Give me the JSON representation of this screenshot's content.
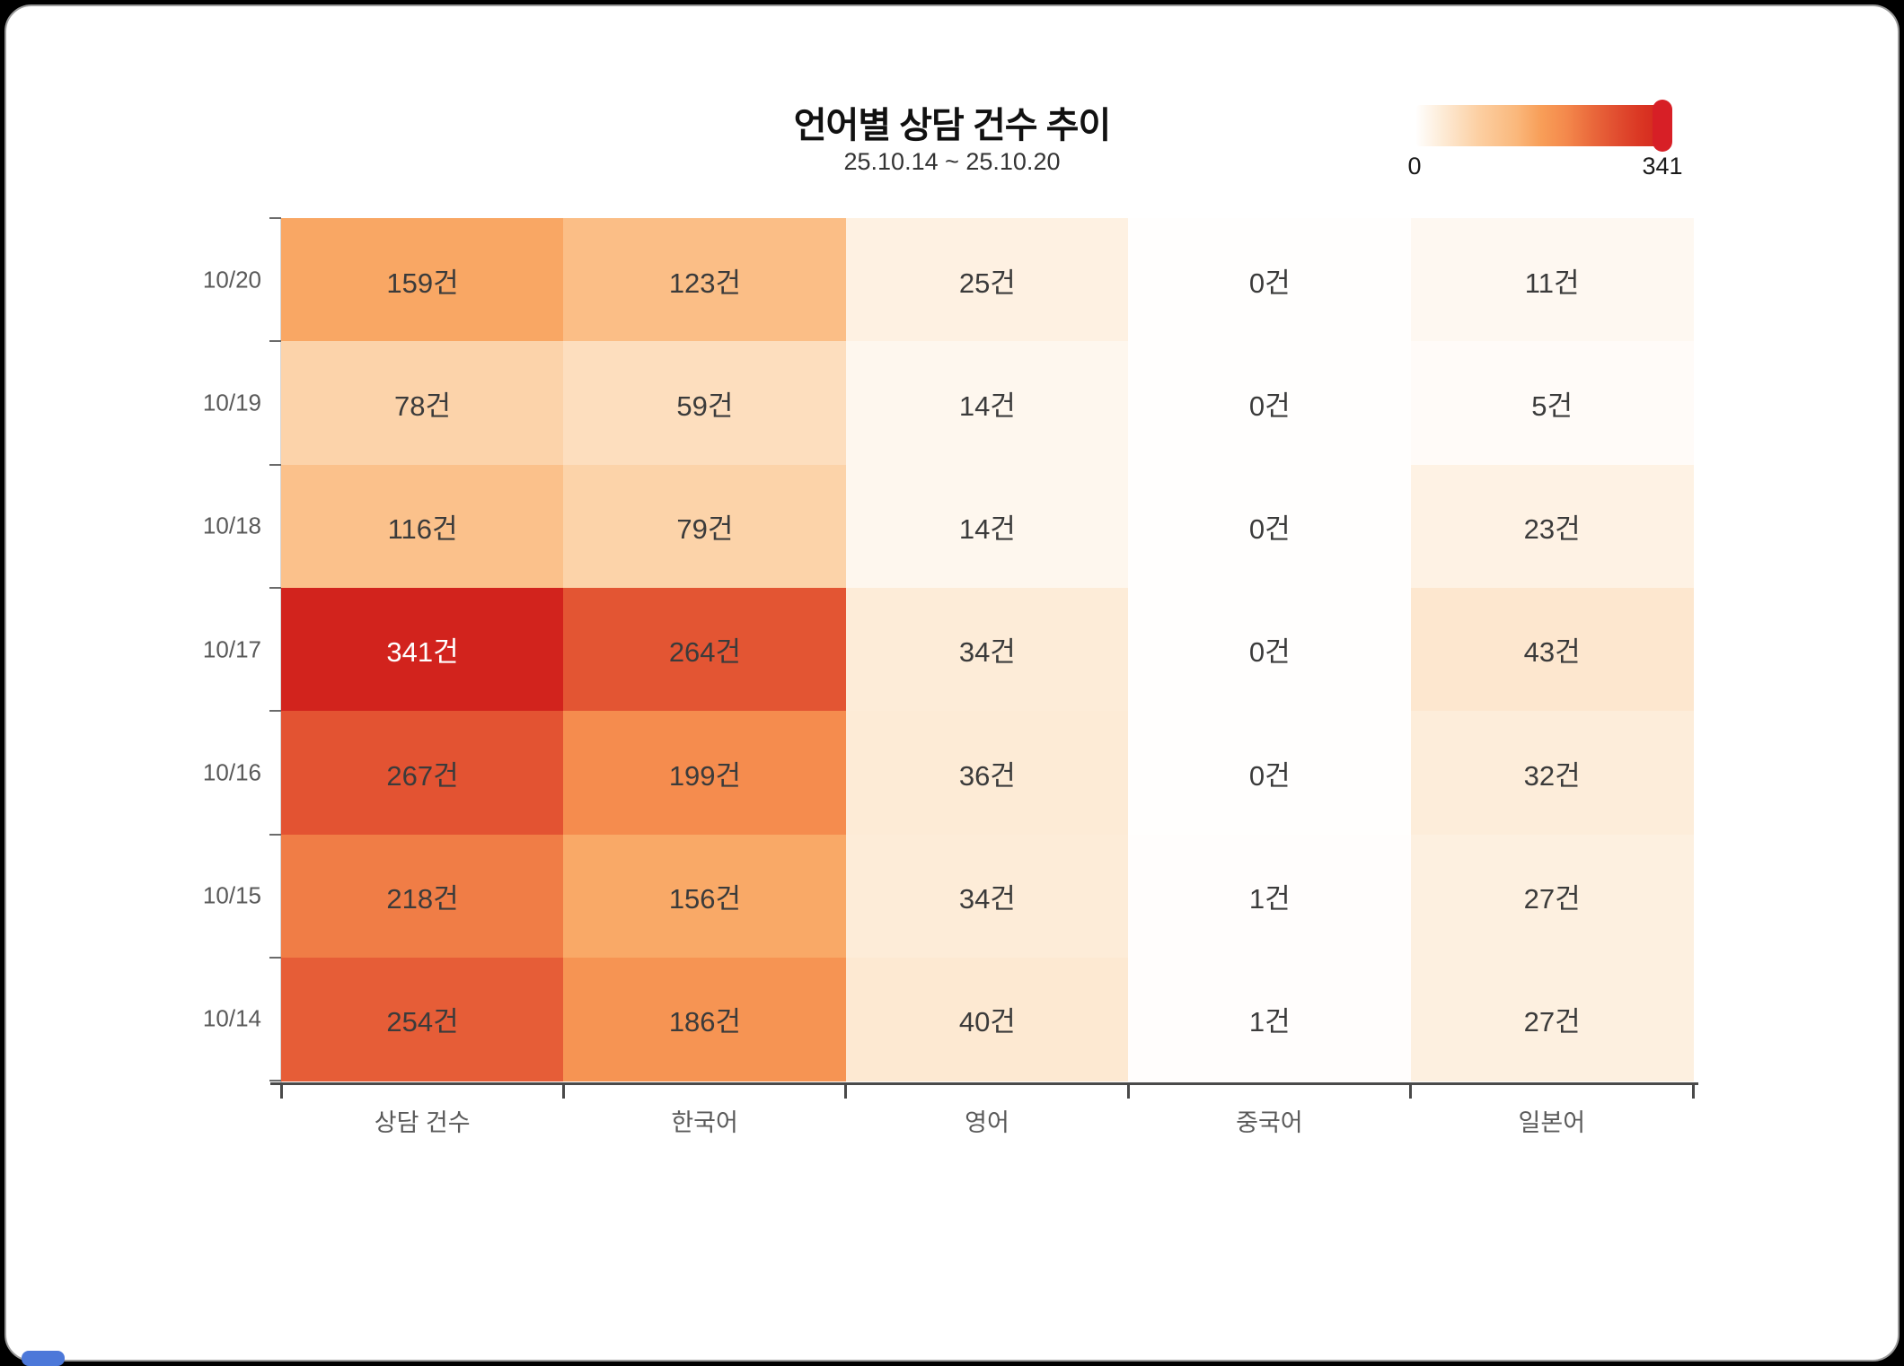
{
  "header": {
    "title": "언어별 상담 건수 추이",
    "subtitle": "25.10.14 ~ 25.10.20"
  },
  "legend": {
    "min_label": "0",
    "max_label": "341",
    "marker_color": "#d71f26"
  },
  "chart_data": {
    "type": "heatmap",
    "title": "언어별 상담 건수 추이",
    "subtitle": "25.10.14 ~ 25.10.20",
    "x_categories": [
      "상담 건수",
      "한국어",
      "영어",
      "중국어",
      "일본어"
    ],
    "y_categories": [
      "10/20",
      "10/19",
      "10/18",
      "10/17",
      "10/16",
      "10/15",
      "10/14"
    ],
    "values": [
      [
        159,
        123,
        25,
        0,
        11
      ],
      [
        78,
        59,
        14,
        0,
        5
      ],
      [
        116,
        79,
        14,
        0,
        23
      ],
      [
        341,
        264,
        34,
        0,
        43
      ],
      [
        267,
        199,
        36,
        0,
        32
      ],
      [
        218,
        156,
        34,
        1,
        27
      ],
      [
        254,
        186,
        40,
        1,
        27
      ]
    ],
    "value_suffix": "건",
    "value_min": 0,
    "value_max": 341,
    "colormap_stops": [
      [
        0,
        "#fffefd"
      ],
      [
        0.1,
        "#fdecd8"
      ],
      [
        0.25,
        "#fccfa2"
      ],
      [
        0.4,
        "#fab87c"
      ],
      [
        0.5,
        "#f89e58"
      ],
      [
        0.6,
        "#f4894c"
      ],
      [
        0.7,
        "#ea6a3c"
      ],
      [
        0.8,
        "#e14e30"
      ],
      [
        0.9,
        "#da3623"
      ],
      [
        1,
        "#d2231d"
      ]
    ],
    "legend_position": "top-right",
    "grid": false
  },
  "colors": {
    "cell_text": "#3b3b3b",
    "cell_text_on_dark": "#ffffff",
    "axis_line": "#4a4a4a",
    "y_axis_line": "#d6d6d6",
    "axis_label": "#595959"
  }
}
